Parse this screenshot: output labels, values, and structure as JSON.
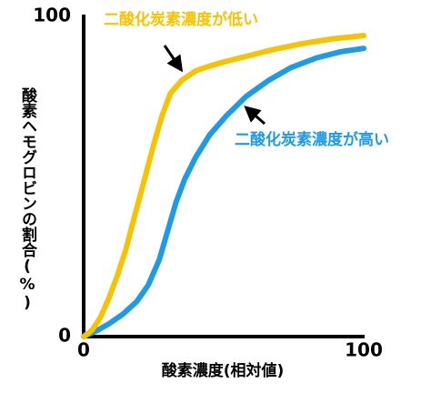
{
  "chart_data": {
    "type": "line",
    "xlabel": "酸素濃度(相対値)",
    "ylabel": "酸素ヘモグロビンの割合(%)",
    "xlim": [
      0,
      100
    ],
    "ylim": [
      0,
      100
    ],
    "xticks": [
      0,
      100
    ],
    "yticks": [
      0,
      100
    ],
    "series": [
      {
        "name": "二酸化炭素濃度が低い",
        "color": "#f7c300",
        "x": [
          0,
          3,
          6,
          9,
          12,
          15,
          18,
          22,
          25,
          28,
          31,
          35,
          40,
          45,
          51,
          58,
          67,
          78,
          89,
          100
        ],
        "values": [
          0,
          2,
          6,
          12,
          19,
          27,
          37,
          50,
          60,
          69,
          76,
          80,
          83,
          84.5,
          86,
          87.5,
          89.5,
          91.5,
          93,
          94
        ]
      },
      {
        "name": "二酸化炭素濃度が高い",
        "color": "#1e9be8",
        "x": [
          0,
          5,
          9,
          14,
          19,
          23,
          27,
          30,
          33,
          36,
          40,
          45,
          51,
          58,
          66,
          74,
          83,
          92,
          100
        ],
        "values": [
          0,
          2,
          4,
          7,
          11,
          16,
          24,
          33,
          42,
          49,
          56,
          63,
          69,
          75,
          80,
          84,
          87,
          89,
          90
        ]
      }
    ]
  }
}
